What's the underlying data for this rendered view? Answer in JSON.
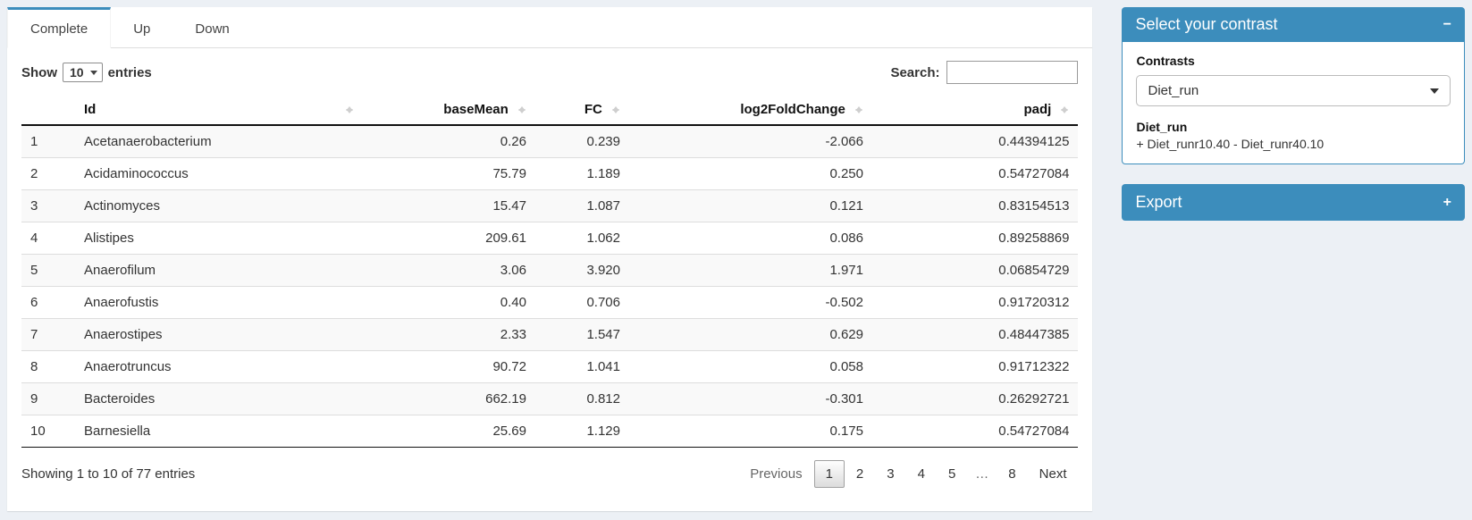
{
  "colors": {
    "accent": "#3c8dbc",
    "page_bg": "#ecf0f5"
  },
  "tabs": [
    {
      "label": "Complete",
      "active": true
    },
    {
      "label": "Up",
      "active": false
    },
    {
      "label": "Down",
      "active": false
    }
  ],
  "length_control": {
    "prefix": "Show",
    "value": "10",
    "suffix": "entries"
  },
  "search": {
    "label": "Search:",
    "value": ""
  },
  "table": {
    "columns": {
      "num": "",
      "id": "Id",
      "basemean": "baseMean",
      "fc": "FC",
      "log2fc": "log2FoldChange",
      "padj": "padj"
    },
    "rows": [
      {
        "index": "1",
        "id": "Acetanaerobacterium",
        "basemean": "0.26",
        "fc": "0.239",
        "log2fc": "-2.066",
        "padj": "0.44394125"
      },
      {
        "index": "2",
        "id": "Acidaminococcus",
        "basemean": "75.79",
        "fc": "1.189",
        "log2fc": "0.250",
        "padj": "0.54727084"
      },
      {
        "index": "3",
        "id": "Actinomyces",
        "basemean": "15.47",
        "fc": "1.087",
        "log2fc": "0.121",
        "padj": "0.83154513"
      },
      {
        "index": "4",
        "id": "Alistipes",
        "basemean": "209.61",
        "fc": "1.062",
        "log2fc": "0.086",
        "padj": "0.89258869"
      },
      {
        "index": "5",
        "id": "Anaerofilum",
        "basemean": "3.06",
        "fc": "3.920",
        "log2fc": "1.971",
        "padj": "0.06854729"
      },
      {
        "index": "6",
        "id": "Anaerofustis",
        "basemean": "0.40",
        "fc": "0.706",
        "log2fc": "-0.502",
        "padj": "0.91720312"
      },
      {
        "index": "7",
        "id": "Anaerostipes",
        "basemean": "2.33",
        "fc": "1.547",
        "log2fc": "0.629",
        "padj": "0.48447385"
      },
      {
        "index": "8",
        "id": "Anaerotruncus",
        "basemean": "90.72",
        "fc": "1.041",
        "log2fc": "0.058",
        "padj": "0.91712322"
      },
      {
        "index": "9",
        "id": "Bacteroides",
        "basemean": "662.19",
        "fc": "0.812",
        "log2fc": "-0.301",
        "padj": "0.26292721"
      },
      {
        "index": "10",
        "id": "Barnesiella",
        "basemean": "25.69",
        "fc": "1.129",
        "log2fc": "0.175",
        "padj": "0.54727084"
      }
    ],
    "info": "Showing 1 to 10 of 77 entries",
    "pagination": {
      "previous": "Previous",
      "pages": [
        "1",
        "2",
        "3",
        "4",
        "5",
        "…",
        "8"
      ],
      "current": "1",
      "next": "Next"
    }
  },
  "contrast_panel": {
    "title": "Select your contrast",
    "collapse_icon": "−",
    "contrasts_label": "Contrasts",
    "selected_contrast": "Diet_run",
    "detail_title": "Diet_run",
    "detail_formula": "+ Diet_runr10.40 - Diet_runr40.10"
  },
  "export_panel": {
    "title": "Export",
    "expand_icon": "+"
  }
}
